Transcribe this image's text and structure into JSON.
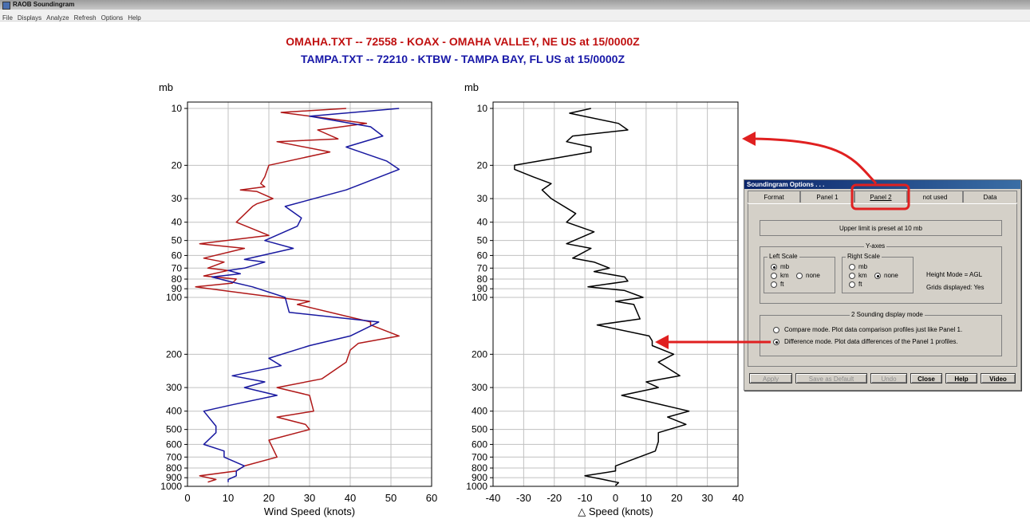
{
  "window": {
    "title": "RAOB Soundingram"
  },
  "menu": [
    "File",
    "Displays",
    "Analyze",
    "Refresh",
    "Options",
    "Help"
  ],
  "header": {
    "line1": "OMAHA.TXT  --  72558 - KOAX - OMAHA VALLEY, NE US  at 15/0000Z",
    "line2": "TAMPA.TXT  --  72210 - KTBW - TAMPA BAY, FL US  at 15/0000Z",
    "line1_color": "#c01010",
    "line2_color": "#1818a8"
  },
  "chart_data": [
    {
      "type": "line",
      "xlabel": "Wind Speed (knots)",
      "ylabel": "mb",
      "xlim": [
        0,
        60
      ],
      "xticks": [
        0,
        10,
        20,
        30,
        40,
        50,
        60
      ],
      "y_scale": "log (pressure, inverted)",
      "ylim": [
        1000,
        10
      ],
      "yticks": [
        10,
        20,
        30,
        40,
        50,
        60,
        70,
        80,
        90,
        100,
        200,
        300,
        400,
        500,
        600,
        700,
        800,
        900,
        1000
      ],
      "grid": true,
      "series": [
        {
          "color": "#b01818",
          "points": [
            [
              39,
              10
            ],
            [
              23,
              10.5
            ],
            [
              44,
              12
            ],
            [
              32,
              13
            ],
            [
              37,
              14.5
            ],
            [
              22,
              15
            ],
            [
              35,
              17
            ],
            [
              20,
              20
            ],
            [
              19,
              23
            ],
            [
              18,
              25
            ],
            [
              19,
              26
            ],
            [
              13,
              27
            ],
            [
              17,
              27.5
            ],
            [
              21,
              30
            ],
            [
              17,
              32
            ],
            [
              16,
              33
            ],
            [
              12,
              40
            ],
            [
              20,
              47
            ],
            [
              3,
              52
            ],
            [
              14,
              55
            ],
            [
              4,
              62
            ],
            [
              9,
              65
            ],
            [
              5,
              70
            ],
            [
              10,
              72
            ],
            [
              4,
              77
            ],
            [
              12,
              80
            ],
            [
              11,
              84
            ],
            [
              2,
              88
            ],
            [
              17,
              97
            ],
            [
              30,
              105
            ],
            [
              27,
              109
            ],
            [
              45,
              135
            ],
            [
              45,
              140
            ],
            [
              52,
              160
            ],
            [
              42,
              175
            ],
            [
              40,
              190
            ],
            [
              39,
              220
            ],
            [
              33,
              270
            ],
            [
              22,
              300
            ],
            [
              30,
              330
            ],
            [
              31,
              400
            ],
            [
              22,
              430
            ],
            [
              29,
              470
            ],
            [
              30,
              500
            ],
            [
              20,
              570
            ],
            [
              22,
              700
            ],
            [
              14,
              780
            ],
            [
              12,
              830
            ],
            [
              3,
              880
            ],
            [
              7,
              920
            ],
            [
              5,
              950
            ]
          ]
        },
        {
          "color": "#1818a0",
          "points": [
            [
              52,
              10
            ],
            [
              30,
              11
            ],
            [
              45,
              12.5
            ],
            [
              48,
              14
            ],
            [
              39,
              16
            ],
            [
              49,
              19
            ],
            [
              52,
              21
            ],
            [
              43,
              25
            ],
            [
              39,
              27
            ],
            [
              24,
              33
            ],
            [
              28,
              38
            ],
            [
              27,
              42
            ],
            [
              19,
              50
            ],
            [
              26,
              55
            ],
            [
              14,
              63
            ],
            [
              19,
              65
            ],
            [
              14,
              70
            ],
            [
              10,
              72
            ],
            [
              13,
              75
            ],
            [
              6,
              78
            ],
            [
              10,
              82
            ],
            [
              16,
              88
            ],
            [
              24,
              100
            ],
            [
              25,
              120
            ],
            [
              47,
              135
            ],
            [
              40,
              160
            ],
            [
              30,
              180
            ],
            [
              20,
              210
            ],
            [
              23,
              230
            ],
            [
              11,
              260
            ],
            [
              19,
              280
            ],
            [
              14,
              300
            ],
            [
              22,
              330
            ],
            [
              11,
              370
            ],
            [
              4,
              400
            ],
            [
              7,
              480
            ],
            [
              7,
              520
            ],
            [
              4,
              600
            ],
            [
              9,
              650
            ],
            [
              9,
              700
            ],
            [
              14,
              780
            ],
            [
              12,
              830
            ],
            [
              12,
              880
            ],
            [
              10,
              920
            ],
            [
              10,
              950
            ]
          ]
        }
      ]
    },
    {
      "type": "line",
      "xlabel": "△ Speed (knots)",
      "ylabel": "mb",
      "xlim": [
        -40,
        40
      ],
      "xticks": [
        -40,
        -30,
        -20,
        -10,
        0,
        10,
        20,
        30,
        40
      ],
      "y_scale": "log (pressure, inverted)",
      "ylim": [
        1000,
        10
      ],
      "yticks": [
        10,
        20,
        30,
        40,
        50,
        60,
        70,
        80,
        90,
        100,
        200,
        300,
        400,
        500,
        600,
        700,
        800,
        900,
        1000
      ],
      "grid": true,
      "series": [
        {
          "color": "#000000",
          "points": [
            [
              -8,
              10
            ],
            [
              -15,
              10.6
            ],
            [
              1,
              12
            ],
            [
              4,
              13
            ],
            [
              -14,
              14
            ],
            [
              -16,
              15
            ],
            [
              -8,
              16
            ],
            [
              -8,
              17
            ],
            [
              -33,
              20
            ],
            [
              -33,
              21
            ],
            [
              -27,
              23
            ],
            [
              -21,
              25
            ],
            [
              -24,
              27
            ],
            [
              -21,
              30
            ],
            [
              -13,
              36
            ],
            [
              -16,
              40
            ],
            [
              -7,
              45
            ],
            [
              -16,
              52
            ],
            [
              -8,
              55
            ],
            [
              -14,
              62
            ],
            [
              -7,
              65
            ],
            [
              -2,
              70
            ],
            [
              -7,
              73
            ],
            [
              3,
              78
            ],
            [
              4,
              82
            ],
            [
              -9,
              88
            ],
            [
              3,
              92
            ],
            [
              9,
              100
            ],
            [
              0,
              105
            ],
            [
              6,
              109
            ],
            [
              8,
              130
            ],
            [
              -6,
              140
            ],
            [
              11,
              160
            ],
            [
              12,
              170
            ],
            [
              12,
              180
            ],
            [
              19,
              200
            ],
            [
              14,
              220
            ],
            [
              21,
              260
            ],
            [
              10,
              280
            ],
            [
              14,
              300
            ],
            [
              2,
              330
            ],
            [
              24,
              400
            ],
            [
              17,
              430
            ],
            [
              23,
              470
            ],
            [
              14,
              520
            ],
            [
              14,
              580
            ],
            [
              13,
              650
            ],
            [
              0,
              780
            ],
            [
              0,
              830
            ],
            [
              -10,
              880
            ],
            [
              -4,
              920
            ],
            [
              1,
              955
            ],
            [
              0,
              990
            ]
          ]
        }
      ]
    }
  ],
  "dialog": {
    "title": "Soundingram Options . . .",
    "tabs": [
      "Format",
      "Panel 1",
      "Panel 2",
      "not used",
      "Data"
    ],
    "active_tab": "Panel 2",
    "info": "Upper limit is preset at 10 mb",
    "yaxes": {
      "title": "Y-axes",
      "left_scale": {
        "title": "Left Scale",
        "options": [
          "mb",
          "km",
          "none",
          "ft"
        ],
        "selected": "mb"
      },
      "right_scale": {
        "title": "Right Scale",
        "options": [
          "mb",
          "km",
          "none",
          "ft"
        ],
        "selected": "none"
      },
      "height_mode": "Height Mode = AGL",
      "grids_displayed": "Grids displayed:  Yes"
    },
    "mode": {
      "title": "2 Sounding display mode",
      "options": [
        "Compare mode.  Plot data comparison profiles just like Panel 1.",
        "Difference mode.  Plot data differences of the Panel 1 profiles."
      ],
      "selected": 1
    },
    "buttons": {
      "apply": "Apply",
      "save_default": "Save as Default",
      "undo": "Undo",
      "close": "Close",
      "help": "Help",
      "video": "Video"
    }
  },
  "annotations": {
    "arrow_color": "#e02020",
    "highlight_color": "#e02020"
  }
}
